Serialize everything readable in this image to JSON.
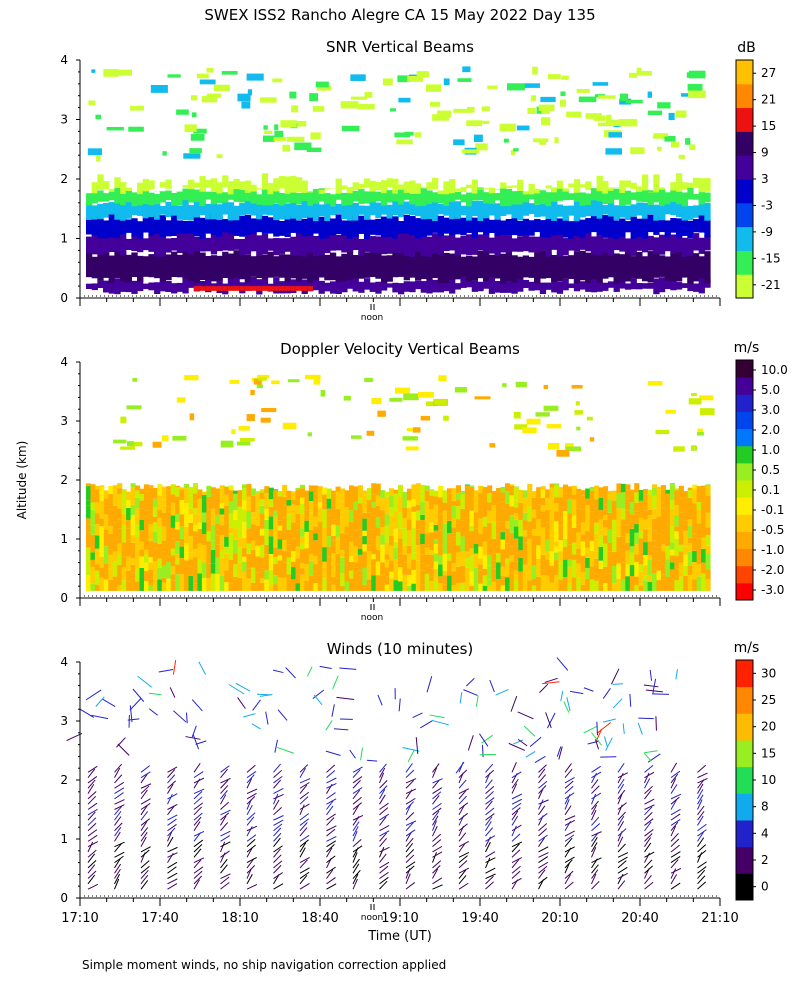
{
  "title": "SWEX ISS2 Rancho Alegre CA  15 May 2022 Day 135",
  "footnote": "Simple moment winds, no ship navigation correction applied",
  "colors": {
    "snr_scale": [
      "#ccff33",
      "#33ee55",
      "#11bbee",
      "#0044ee",
      "#0000cc",
      "#44009a",
      "#330066",
      "#ee1111",
      "#ff8800",
      "#ffc000"
    ],
    "doppler_scale": [
      "#ff0000",
      "#ff4400",
      "#ff8800",
      "#ffaa00",
      "#ffcc00",
      "#ffee00",
      "#ccee00",
      "#99ee22",
      "#22cc22",
      "#0077ff",
      "#0044ee",
      "#2222cc",
      "#440099",
      "#330033"
    ],
    "wind_scale": [
      "#000000",
      "#440066",
      "#2222cc",
      "#11aaee",
      "#22dd55",
      "#99ee22",
      "#ffbb00",
      "#ff8800",
      "#ff2200"
    ]
  },
  "chart_data": [
    {
      "type": "heatmap",
      "title": "SNR Vertical Beams",
      "ylabel": "",
      "xlabel": "",
      "ylim": [
        0,
        4
      ],
      "yticks": [
        "0",
        "1",
        "2",
        "3",
        "4"
      ],
      "noon_label": "noon",
      "colorbar": {
        "unit": "dB",
        "labels": [
          "27",
          "21",
          "15",
          "9",
          "3",
          "-3",
          "-9",
          "-15",
          "-21"
        ]
      },
      "profile": [
        {
          "z_min": 0.1,
          "z_max": 0.3,
          "snr_db": 3
        },
        {
          "z_min": 0.3,
          "z_max": 0.9,
          "snr_db": 6
        },
        {
          "z_min": 0.9,
          "z_max": 1.3,
          "snr_db": -3
        },
        {
          "z_min": 1.3,
          "z_max": 1.6,
          "snr_db": -9
        },
        {
          "z_min": 1.6,
          "z_max": 1.8,
          "snr_db": -15
        },
        {
          "z_min": 1.8,
          "z_max": 2.0,
          "snr_db": -21
        }
      ]
    },
    {
      "type": "heatmap",
      "title": "Doppler Velocity Vertical Beams",
      "ylabel": "Altitude (km)",
      "ylim": [
        0,
        4
      ],
      "yticks": [
        "0",
        "1",
        "2",
        "3",
        "4"
      ],
      "noon_label": "noon",
      "colorbar": {
        "unit": "m/s",
        "labels": [
          "10.0",
          "5.0",
          "3.0",
          "2.0",
          "1.0",
          "0.5",
          "0.1",
          "-0.1",
          "-0.5",
          "-1.0",
          "-2.0",
          "-3.0"
        ]
      },
      "dominant_range_ms": [
        -1.0,
        0.1
      ]
    },
    {
      "type": "scatter",
      "title": "Winds (10 minutes)",
      "xlabel": "Time (UT)",
      "ylim": [
        0,
        4
      ],
      "yticks": [
        "0",
        "1",
        "2",
        "3",
        "4"
      ],
      "noon_label": "noon",
      "x_categories": [
        "17:10",
        "17:40",
        "18:10",
        "18:40",
        "19:10",
        "19:40",
        "20:10",
        "20:40",
        "21:10"
      ],
      "colorbar": {
        "unit": "m/s",
        "labels": [
          "30",
          "25",
          "20",
          "15",
          "10",
          "8",
          "4",
          "2",
          "0"
        ]
      },
      "profile_speed_ms": [
        {
          "z_max": 1.0,
          "speed": 3
        },
        {
          "z_max": 2.2,
          "speed": 5
        },
        {
          "z_max": 4.0,
          "speed": 9
        }
      ]
    }
  ]
}
